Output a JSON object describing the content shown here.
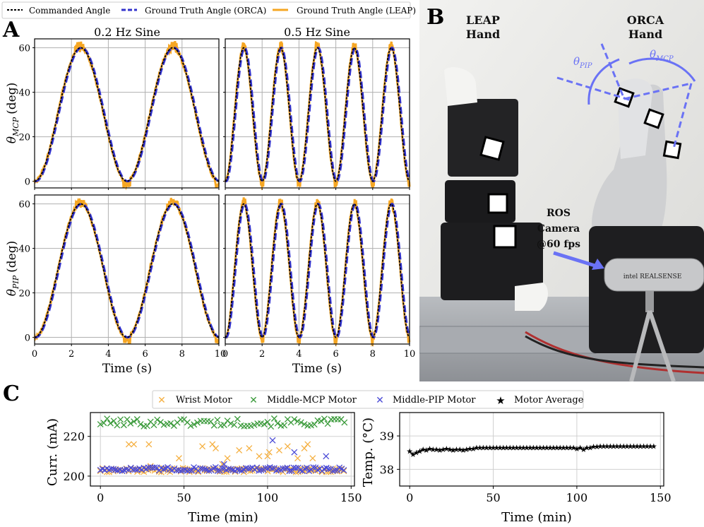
{
  "panels": {
    "A": "A",
    "B": "B",
    "C": "C"
  },
  "panel_a": {
    "legend": {
      "commanded": "Commanded Angle",
      "orca": "Ground Truth Angle (ORCA)",
      "leap": "Ground Truth Angle (LEAP)"
    },
    "col_titles": [
      "0.2 Hz Sine",
      "0.5 Hz Sine"
    ],
    "ylabel_mcp_main": "θ",
    "ylabel_mcp_sub": "MCP",
    "ylabel_pip_main": "θ",
    "ylabel_pip_sub": "PIP",
    "ylabel_unit": "(deg)",
    "xlabel": "Time (s)",
    "colors": {
      "commanded": "#000000",
      "orca": "#3333cc",
      "leap": "#f5a623"
    }
  },
  "photo": {
    "leap_label": [
      "LEAP",
      "Hand"
    ],
    "orca_label": [
      "ORCA",
      "Hand"
    ],
    "theta_pip": "θ",
    "theta_pip_sub": "PIP",
    "theta_mcp": "θ",
    "theta_mcp_sub": "MCP",
    "camera_label": [
      "ROS",
      "Camera",
      "@60 fps"
    ],
    "brand_text": "intel REALSENSE",
    "accent": "#6a72f5"
  },
  "panel_c": {
    "legend": [
      "Wrist Motor",
      "Middle-MCP Motor",
      "Middle-PIP Motor",
      "Motor Average"
    ],
    "curr_ylabel": "Curr. (mA)",
    "temp_ylabel": "Temp. (°C)",
    "xlabel": "Time (min)",
    "colors": {
      "wrist": "#f5b041",
      "mcp": "#3a9a3a",
      "pip": "#4a4ad6",
      "avg": "#000000"
    }
  },
  "chart_data": [
    {
      "type": "line",
      "id": "mcp-0.2hz",
      "title": "0.2 Hz Sine",
      "xlabel": "",
      "ylabel": "θ_MCP (deg)",
      "xlim": [
        0,
        10
      ],
      "ylim": [
        -3,
        64
      ],
      "xticks": [
        0,
        2,
        4,
        6,
        8,
        10
      ],
      "yticks": [
        0,
        20,
        40,
        60
      ],
      "freq_hz": 0.2,
      "amplitude_deg": 30,
      "offset_deg": 30,
      "series": [
        "Commanded Angle",
        "Ground Truth Angle (ORCA)",
        "Ground Truth Angle (LEAP)"
      ]
    },
    {
      "type": "line",
      "id": "mcp-0.5hz",
      "title": "0.5 Hz Sine",
      "xlabel": "",
      "ylabel": "",
      "xlim": [
        0,
        10
      ],
      "ylim": [
        -3,
        64
      ],
      "xticks": [
        0,
        2,
        4,
        6,
        8,
        10
      ],
      "yticks": [
        0,
        20,
        40,
        60
      ],
      "freq_hz": 0.5,
      "amplitude_deg": 30,
      "offset_deg": 30,
      "series": [
        "Commanded Angle",
        "Ground Truth Angle (ORCA)",
        "Ground Truth Angle (LEAP)"
      ]
    },
    {
      "type": "line",
      "id": "pip-0.2hz",
      "title": "",
      "xlabel": "Time (s)",
      "ylabel": "θ_PIP (deg)",
      "xlim": [
        0,
        10
      ],
      "ylim": [
        -3,
        64
      ],
      "xticks": [
        0,
        2,
        4,
        6,
        8,
        10
      ],
      "yticks": [
        0,
        20,
        40,
        60
      ],
      "xtick_labels": [
        "0",
        "2",
        "4",
        "6",
        "8",
        "10"
      ],
      "freq_hz": 0.2,
      "amplitude_deg": 30,
      "offset_deg": 30,
      "series": [
        "Commanded Angle",
        "Ground Truth Angle (ORCA)",
        "Ground Truth Angle (LEAP)"
      ]
    },
    {
      "type": "line",
      "id": "pip-0.5hz",
      "title": "",
      "xlabel": "Time (s)",
      "ylabel": "",
      "xlim": [
        0,
        10
      ],
      "ylim": [
        -3,
        64
      ],
      "xticks": [
        0,
        2,
        4,
        6,
        8,
        10
      ],
      "yticks": [
        0,
        20,
        40,
        60
      ],
      "xtick_labels": [
        "0",
        "2",
        "4",
        "6",
        "8",
        "10"
      ],
      "freq_hz": 0.5,
      "amplitude_deg": 30,
      "offset_deg": 30,
      "series": [
        "Commanded Angle",
        "Ground Truth Angle (ORCA)",
        "Ground Truth Angle (LEAP)"
      ]
    },
    {
      "type": "scatter",
      "id": "current",
      "xlabel": "Time (min)",
      "ylabel": "Curr. (mA)",
      "xlim": [
        -6,
        152
      ],
      "ylim": [
        195,
        232
      ],
      "xticks": [
        0,
        50,
        100,
        150
      ],
      "yticks": [
        200,
        220
      ],
      "series": [
        {
          "name": "Middle-MCP Motor",
          "baseline": 227,
          "spread": 2
        },
        {
          "name": "Wrist Motor",
          "baseline": 203,
          "spread": 1,
          "outliers": [
            [
              17,
              216
            ],
            [
              20,
              216
            ],
            [
              29,
              216
            ],
            [
              30,
              205
            ],
            [
              47,
              209
            ],
            [
              61,
              215
            ],
            [
              67,
              216
            ],
            [
              69,
              214
            ],
            [
              73,
              206
            ],
            [
              76,
              209
            ],
            [
              83,
              213
            ],
            [
              89,
              214
            ],
            [
              95,
              210
            ],
            [
              100,
              210
            ],
            [
              101,
              212
            ],
            [
              107,
              213
            ],
            [
              112,
              215
            ],
            [
              118,
              209
            ],
            [
              122,
              214
            ],
            [
              124,
              216
            ],
            [
              127,
              209
            ],
            [
              140,
              203
            ]
          ]
        },
        {
          "name": "Middle-PIP Motor",
          "baseline": 203.5,
          "spread": 1,
          "outliers": [
            [
              74,
              206
            ],
            [
              103,
              218
            ],
            [
              116,
              212
            ],
            [
              135,
              210
            ]
          ]
        }
      ]
    },
    {
      "type": "scatter",
      "id": "temperature",
      "xlabel": "Time (min)",
      "ylabel": "Temp. (°C)",
      "xlim": [
        -6,
        152
      ],
      "ylim": [
        37.5,
        39.7
      ],
      "xticks": [
        0,
        50,
        100,
        150
      ],
      "yticks": [
        38,
        39
      ],
      "series": [
        {
          "name": "Motor Average",
          "points": [
            [
              0,
              38.55
            ],
            [
              2,
              38.45
            ],
            [
              4,
              38.5
            ],
            [
              6,
              38.55
            ],
            [
              8,
              38.6
            ],
            [
              10,
              38.58
            ],
            [
              12,
              38.62
            ],
            [
              14,
              38.6
            ],
            [
              16,
              38.6
            ],
            [
              18,
              38.58
            ],
            [
              20,
              38.6
            ],
            [
              22,
              38.62
            ],
            [
              24,
              38.6
            ],
            [
              26,
              38.58
            ],
            [
              28,
              38.6
            ],
            [
              30,
              38.6
            ],
            [
              32,
              38.58
            ],
            [
              34,
              38.6
            ],
            [
              36,
              38.62
            ],
            [
              38,
              38.62
            ],
            [
              40,
              38.65
            ],
            [
              42,
              38.65
            ],
            [
              44,
              38.65
            ],
            [
              46,
              38.65
            ],
            [
              48,
              38.65
            ],
            [
              50,
              38.65
            ],
            [
              52,
              38.65
            ],
            [
              54,
              38.65
            ],
            [
              56,
              38.65
            ],
            [
              58,
              38.65
            ],
            [
              60,
              38.65
            ],
            [
              62,
              38.65
            ],
            [
              64,
              38.65
            ],
            [
              66,
              38.65
            ],
            [
              68,
              38.65
            ],
            [
              70,
              38.65
            ],
            [
              72,
              38.65
            ],
            [
              74,
              38.65
            ],
            [
              76,
              38.65
            ],
            [
              78,
              38.65
            ],
            [
              80,
              38.65
            ],
            [
              82,
              38.65
            ],
            [
              84,
              38.65
            ],
            [
              86,
              38.65
            ],
            [
              88,
              38.65
            ],
            [
              90,
              38.65
            ],
            [
              92,
              38.65
            ],
            [
              94,
              38.65
            ],
            [
              96,
              38.65
            ],
            [
              98,
              38.65
            ],
            [
              100,
              38.62
            ],
            [
              102,
              38.65
            ],
            [
              104,
              38.6
            ],
            [
              106,
              38.65
            ],
            [
              108,
              38.65
            ],
            [
              110,
              38.68
            ],
            [
              112,
              38.68
            ],
            [
              114,
              38.7
            ],
            [
              116,
              38.7
            ],
            [
              118,
              38.7
            ],
            [
              120,
              38.7
            ],
            [
              122,
              38.7
            ],
            [
              124,
              38.7
            ],
            [
              126,
              38.7
            ],
            [
              128,
              38.7
            ],
            [
              130,
              38.7
            ],
            [
              132,
              38.7
            ],
            [
              134,
              38.7
            ],
            [
              136,
              38.7
            ],
            [
              138,
              38.7
            ],
            [
              140,
              38.7
            ],
            [
              142,
              38.7
            ],
            [
              144,
              38.7
            ],
            [
              146,
              38.7
            ]
          ]
        }
      ]
    }
  ]
}
